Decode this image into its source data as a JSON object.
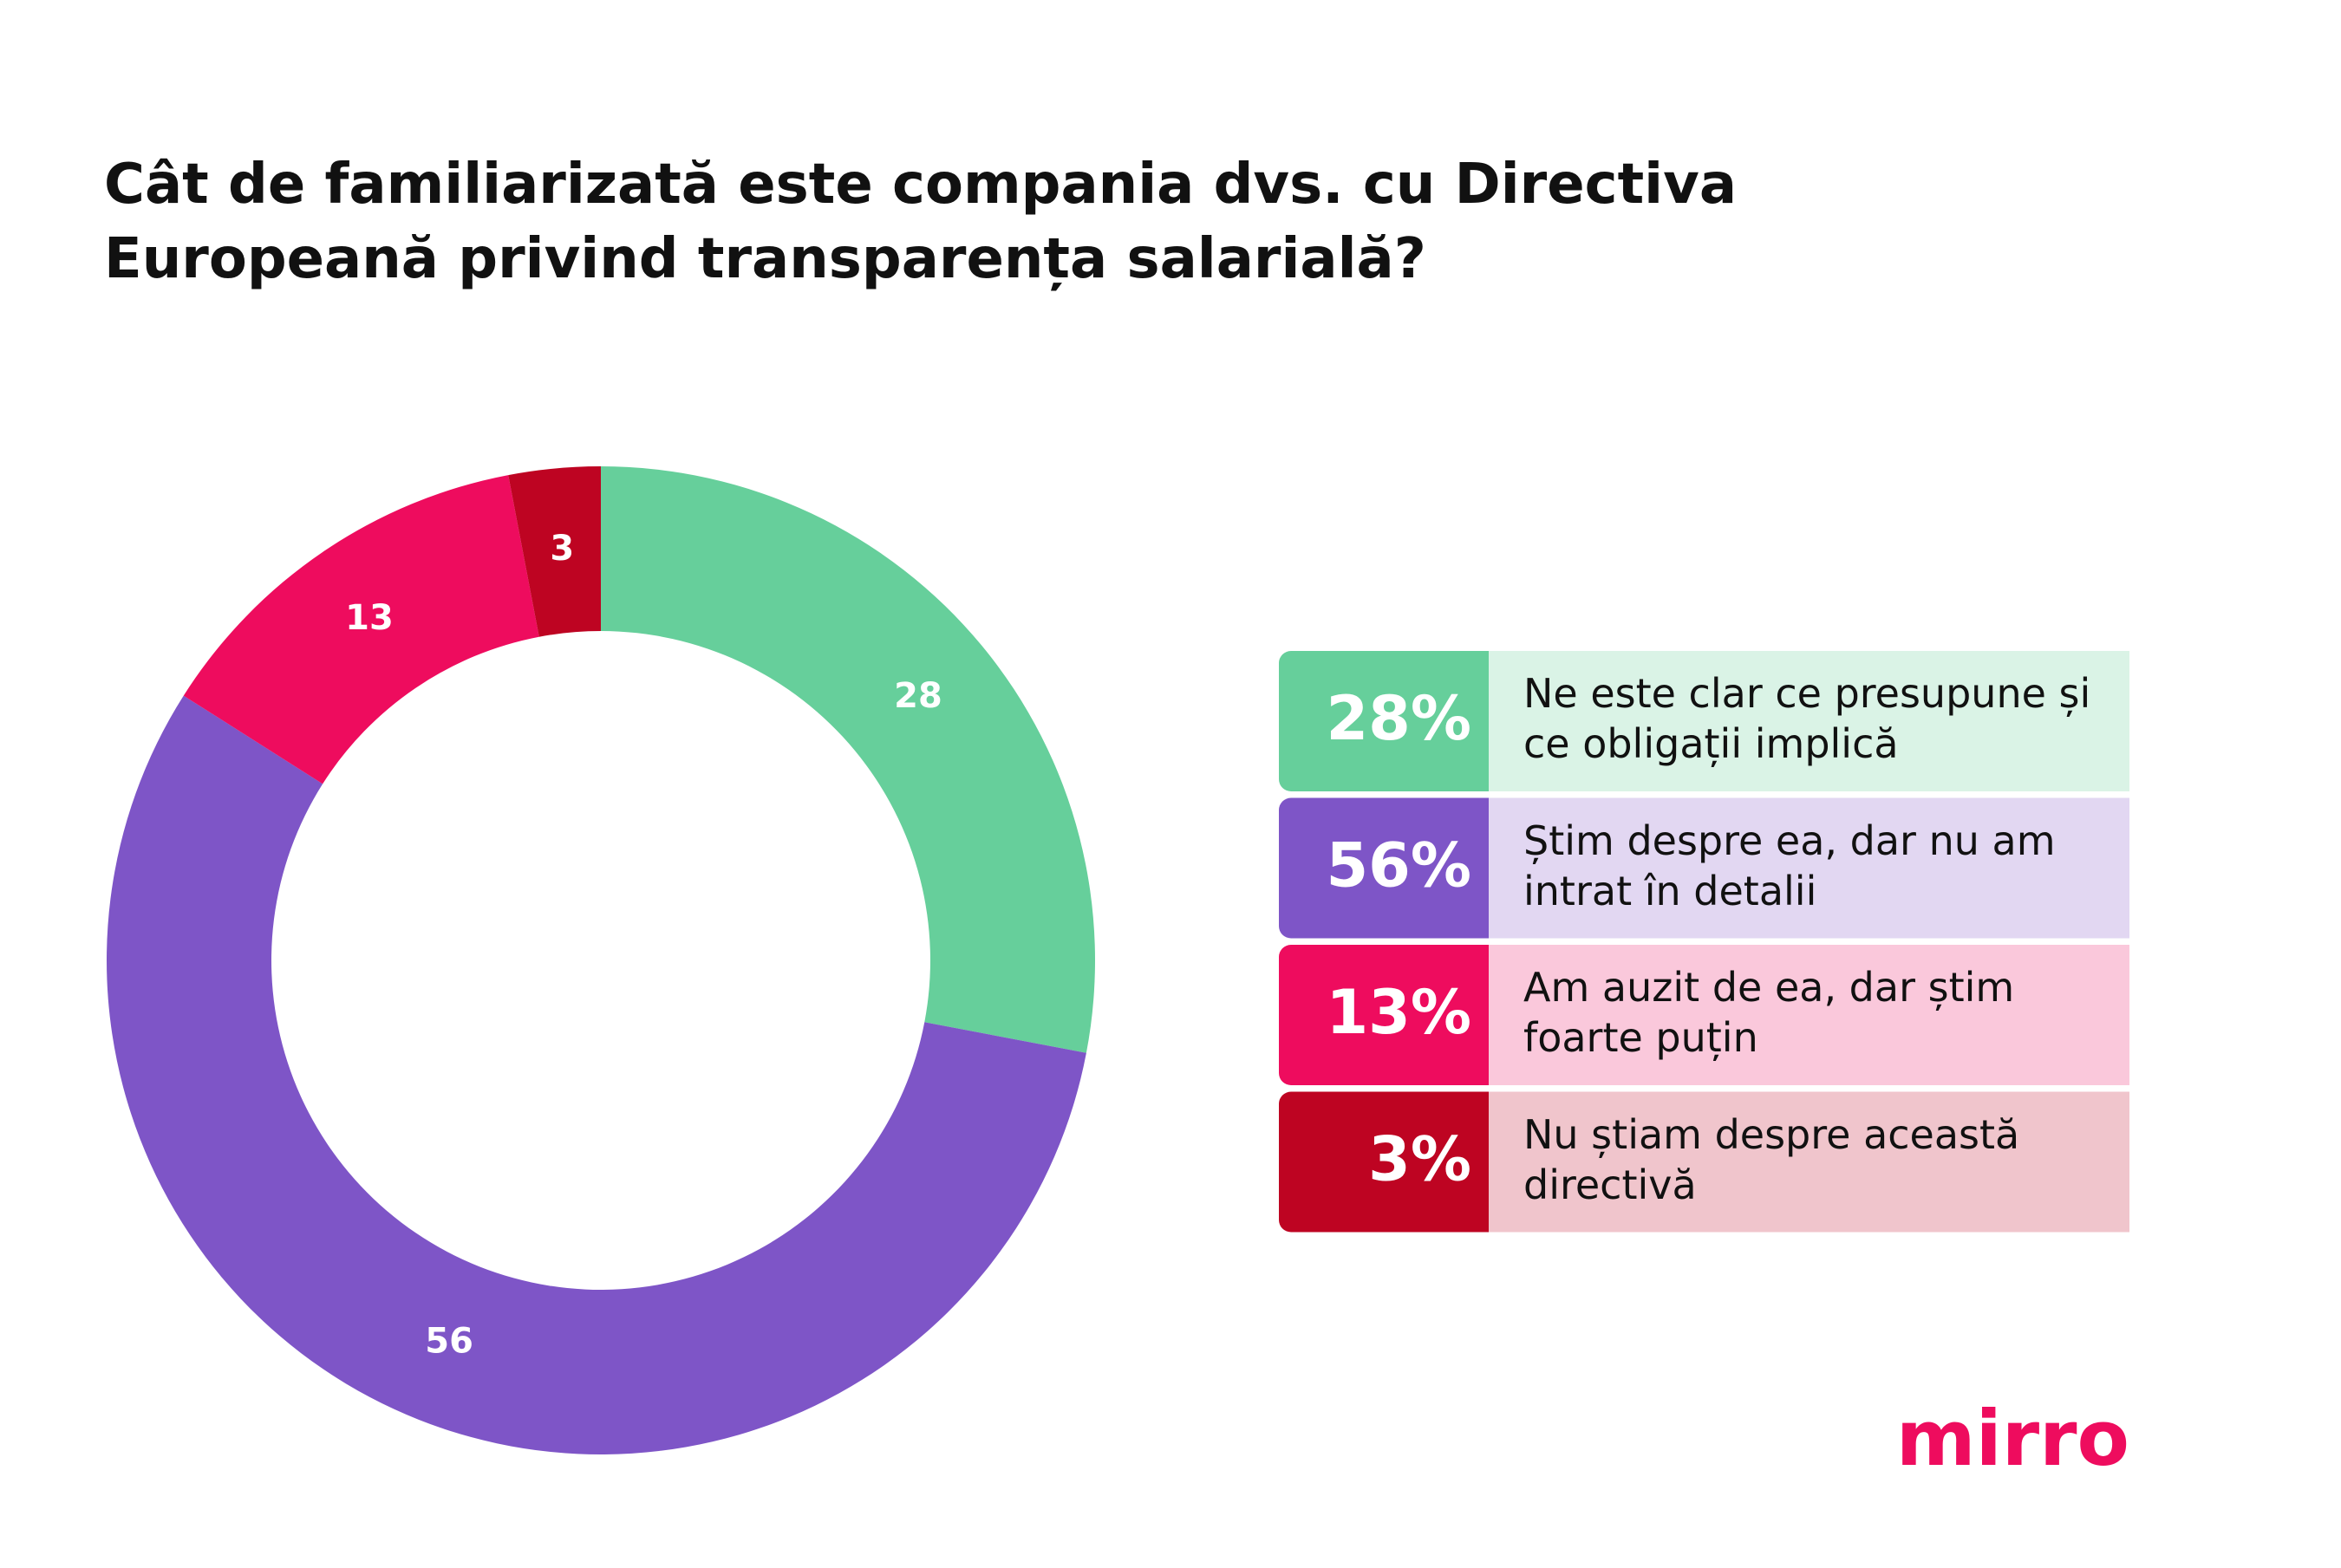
{
  "chart_data": {
    "type": "donut",
    "title": "Cât de familiarizată este compania dvs. cu Directiva Europeană privind transparența salarială?",
    "categories": [
      "Ne este clar ce presupune și ce obligații implică",
      "Știm despre ea, dar nu am intrat în detalii",
      "Am auzit de ea, dar știm foarte puțin",
      "Nu știam despre această directivă"
    ],
    "values": [
      28,
      56,
      13,
      3
    ],
    "value_labels": [
      "28%",
      "56%",
      "13%",
      "3%"
    ],
    "colors": [
      "#66cf9b",
      "#7e55c7",
      "#ee0c5e",
      "#be0422"
    ],
    "legend_backgrounds": [
      "#daf3e6",
      "#e2d7f2",
      "#fac8db",
      "#f0c5cc"
    ],
    "legend": "right",
    "logo": "mirro"
  }
}
